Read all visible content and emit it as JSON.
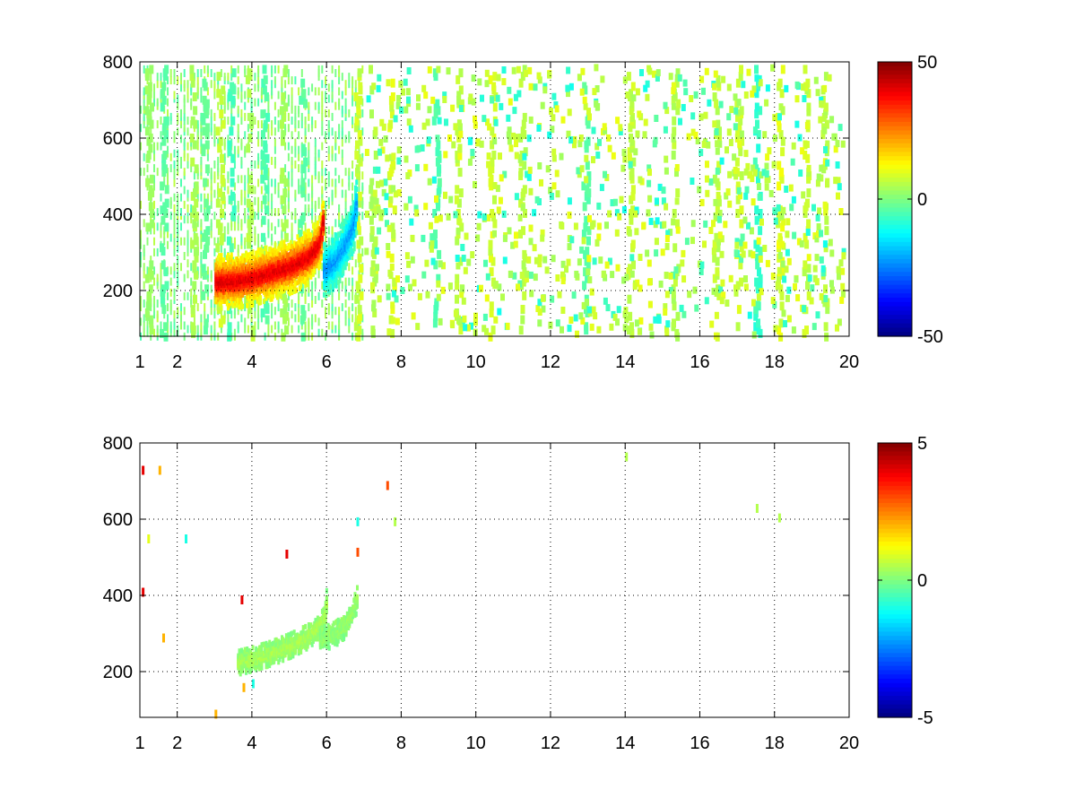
{
  "chart_data": [
    {
      "type": "heatmap",
      "title": "",
      "xlabel": "",
      "ylabel": "",
      "xlim": [
        1,
        20
      ],
      "ylim": [
        80,
        800
      ],
      "x_ticks": [
        1,
        2,
        4,
        6,
        8,
        10,
        12,
        14,
        16,
        18,
        20
      ],
      "y_ticks": [
        200,
        400,
        600,
        800
      ],
      "grid": true,
      "colormap": "jet",
      "clim": [
        -50,
        50
      ],
      "colorbar_ticks": [
        50,
        0,
        -50
      ],
      "features": [
        {
          "name": "positive ridge",
          "points": [
            [
              3.0,
              230
            ],
            [
              3.5,
              232
            ],
            [
              4.0,
              240
            ],
            [
              4.5,
              255
            ],
            [
              5.0,
              270
            ],
            [
              5.5,
              295
            ],
            [
              5.8,
              330
            ],
            [
              5.9,
              400
            ]
          ],
          "value": 40
        },
        {
          "name": "negative ridge",
          "points": [
            [
              5.9,
              260
            ],
            [
              6.2,
              285
            ],
            [
              6.5,
              330
            ],
            [
              6.7,
              380
            ],
            [
              6.8,
              450
            ]
          ],
          "value": -22
        }
      ],
      "noise_columns": [
        {
          "x": 1.2,
          "value": 3
        },
        {
          "x": 1.6,
          "value": -4
        },
        {
          "x": 2.4,
          "value": 5
        },
        {
          "x": 2.7,
          "value": -3
        },
        {
          "x": 3.1,
          "value": 8
        },
        {
          "x": 3.4,
          "value": -6
        },
        {
          "x": 3.9,
          "value": 6
        },
        {
          "x": 4.3,
          "value": -5
        },
        {
          "x": 4.8,
          "value": 4
        },
        {
          "x": 5.3,
          "value": -4
        },
        {
          "x": 6.8,
          "value": 8
        },
        {
          "x": 7.2,
          "value": 6
        },
        {
          "x": 7.7,
          "value": 9
        },
        {
          "x": 8.9,
          "value": -5
        },
        {
          "x": 9.5,
          "value": 7
        },
        {
          "x": 10.4,
          "value": 9
        },
        {
          "x": 11.2,
          "value": 6
        },
        {
          "x": 12.9,
          "value": -4
        },
        {
          "x": 14.1,
          "value": 8
        },
        {
          "x": 15.3,
          "value": 6
        },
        {
          "x": 16.4,
          "value": 7
        },
        {
          "x": 17.0,
          "value": 8
        },
        {
          "x": 17.5,
          "value": -8
        },
        {
          "x": 18.1,
          "value": 10
        },
        {
          "x": 18.8,
          "value": 8
        },
        {
          "x": 19.3,
          "value": 6
        }
      ]
    },
    {
      "type": "heatmap",
      "title": "",
      "xlabel": "",
      "ylabel": "",
      "xlim": [
        1,
        20
      ],
      "ylim": [
        80,
        800
      ],
      "x_ticks": [
        1,
        2,
        4,
        6,
        8,
        10,
        12,
        14,
        16,
        18,
        20
      ],
      "y_ticks": [
        200,
        400,
        600,
        800
      ],
      "grid": true,
      "colormap": "jet",
      "clim": [
        -5,
        5
      ],
      "colorbar_ticks": [
        5,
        0,
        -5
      ],
      "features": [
        {
          "name": "ridge",
          "points": [
            [
              3.6,
              230
            ],
            [
              4.0,
              240
            ],
            [
              4.5,
              255
            ],
            [
              5.0,
              275
            ],
            [
              5.5,
              300
            ],
            [
              5.9,
              340
            ],
            [
              6.0,
              410
            ]
          ],
          "value": 0.4
        },
        {
          "name": "ridge 2",
          "points": [
            [
              5.8,
              290
            ],
            [
              6.2,
              305
            ],
            [
              6.5,
              330
            ],
            [
              6.7,
              370
            ],
            [
              6.8,
              400
            ]
          ],
          "value": 0.2
        }
      ],
      "specks": [
        {
          "x": 1.05,
          "y": 740,
          "value": 4
        },
        {
          "x": 1.05,
          "y": 420,
          "value": 4
        },
        {
          "x": 1.5,
          "y": 740,
          "value": 2
        },
        {
          "x": 1.2,
          "y": 560,
          "value": 1
        },
        {
          "x": 2.2,
          "y": 560,
          "value": -1
        },
        {
          "x": 3.7,
          "y": 400,
          "value": 4
        },
        {
          "x": 3.75,
          "y": 170,
          "value": 2
        },
        {
          "x": 4.0,
          "y": 180,
          "value": -1
        },
        {
          "x": 4.9,
          "y": 520,
          "value": 4
        },
        {
          "x": 6.8,
          "y": 525,
          "value": 3
        },
        {
          "x": 6.8,
          "y": 605,
          "value": -1
        },
        {
          "x": 7.6,
          "y": 700,
          "value": 3
        },
        {
          "x": 7.8,
          "y": 605,
          "value": 0.5
        },
        {
          "x": 14.0,
          "y": 775,
          "value": 0.5
        },
        {
          "x": 17.5,
          "y": 640,
          "value": 0.5
        },
        {
          "x": 18.1,
          "y": 615,
          "value": 0.5
        },
        {
          "x": 3.0,
          "y": 100,
          "value": 2
        },
        {
          "x": 1.6,
          "y": 300,
          "value": 2
        }
      ]
    }
  ]
}
